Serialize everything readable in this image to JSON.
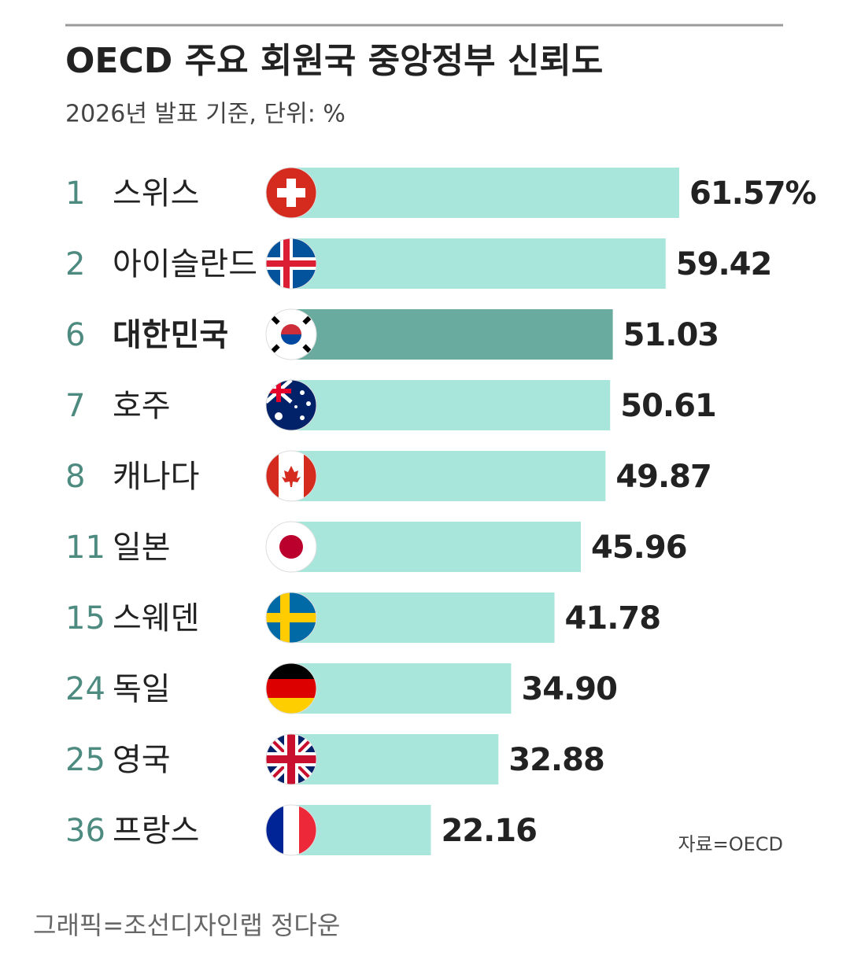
{
  "chart_data": {
    "type": "bar",
    "orientation": "horizontal",
    "title": "OECD 주요 회원국 중앙정부 신뢰도",
    "subtitle": "2026년 발표 기준, 단위: %",
    "ranks": [
      1,
      2,
      6,
      7,
      8,
      11,
      15,
      24,
      25,
      36
    ],
    "categories": [
      "스위스",
      "아이슬란드",
      "대한민국",
      "호주",
      "캐나다",
      "일본",
      "스웨덴",
      "독일",
      "영국",
      "프랑스"
    ],
    "values": [
      61.57,
      59.42,
      51.03,
      50.61,
      49.87,
      45.96,
      41.78,
      34.9,
      32.88,
      22.16
    ],
    "value_labels": [
      "61.57%",
      "59.42",
      "51.03",
      "50.61",
      "49.87",
      "45.96",
      "41.78",
      "34.90",
      "32.88",
      "22.16"
    ],
    "colors": [
      "#a8e6dc",
      "#a8e6dc",
      "#6aaba0",
      "#a8e6dc",
      "#a8e6dc",
      "#a8e6dc",
      "#a8e6dc",
      "#a8e6dc",
      "#a8e6dc",
      "#a8e6dc"
    ],
    "source": "자료=OECD",
    "credit": "그래픽=조선디자인랩 정다운"
  }
}
